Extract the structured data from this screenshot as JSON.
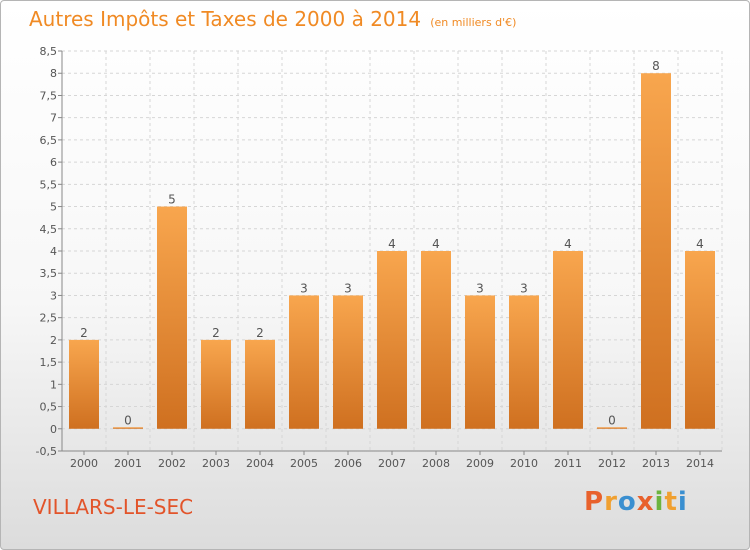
{
  "header": {
    "title": "Autres Impôts et Taxes de 2000 à 2014",
    "unit": "(en milliers d'€)"
  },
  "footer": {
    "town": "VILLARS-LE-SEC",
    "logo": {
      "letters": [
        "P",
        "r",
        "o",
        "x",
        "i",
        "t",
        "i"
      ],
      "colors": [
        "#e8612c",
        "#f0a030",
        "#3a8fd0",
        "#e8612c",
        "#6cb43f",
        "#f0a030",
        "#3a8fd0"
      ]
    }
  },
  "chart_data": {
    "type": "bar",
    "categories": [
      "2000",
      "2001",
      "2002",
      "2003",
      "2004",
      "2005",
      "2006",
      "2007",
      "2008",
      "2009",
      "2010",
      "2011",
      "2012",
      "2013",
      "2014"
    ],
    "values": [
      2,
      0,
      5,
      2,
      2,
      3,
      3,
      4,
      4,
      3,
      3,
      4,
      0,
      8,
      4
    ],
    "data_labels": [
      "2",
      "0",
      "5",
      "2",
      "2",
      "3",
      "3",
      "4",
      "4",
      "3",
      "3",
      "4",
      "0",
      "8",
      "4"
    ],
    "yticks": [
      "-0,5",
      "0",
      "0,5",
      "1",
      "1,5",
      "2",
      "2,5",
      "3",
      "3,5",
      "4",
      "4,5",
      "5",
      "5,5",
      "6",
      "6,5",
      "7",
      "7,5",
      "8",
      "8,5"
    ],
    "ylim": [
      -0.5,
      8.5
    ],
    "grid": true,
    "bar_color_top": "#f8a64e",
    "bar_color_bottom": "#cf7020"
  }
}
